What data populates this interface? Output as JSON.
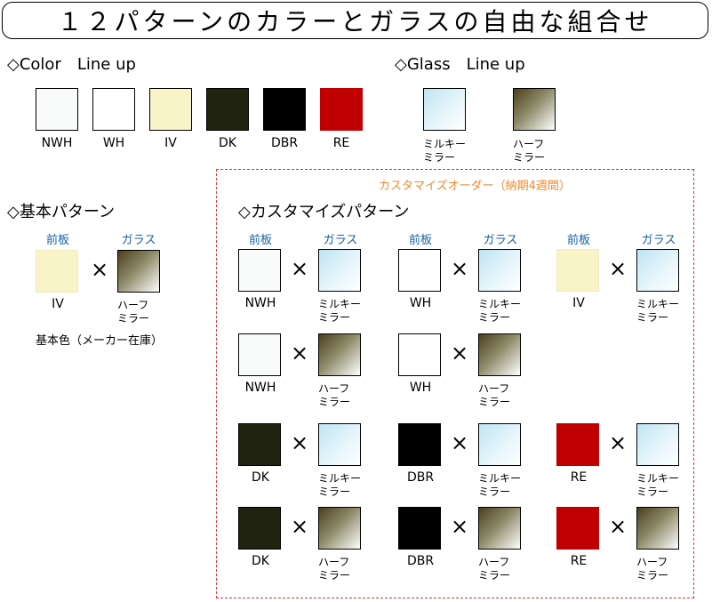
{
  "title": "１２パターンのカラーとガラスの自由な組合せ",
  "color_lineup": {
    "heading": "◇Color　Line up",
    "items": [
      {
        "code": "NWH",
        "color": "#f9fbfb"
      },
      {
        "code": "WH",
        "color": "#ffffff"
      },
      {
        "code": "IV",
        "color": "#f8f4c8"
      },
      {
        "code": "DK",
        "color": "#212311"
      },
      {
        "code": "DBR",
        "color": "#000000"
      },
      {
        "code": "RE",
        "color": "#c00000"
      }
    ]
  },
  "glass_lineup": {
    "heading": "◇Glass　Line up",
    "items": [
      {
        "line1": "ミルキー",
        "line2": "ミラー"
      },
      {
        "line1": "ハーフ",
        "line2": "ミラー"
      }
    ]
  },
  "basic": {
    "heading": "◇基本パターン",
    "front_label": "前板",
    "glass_label": "ガラス",
    "color": "IV",
    "glass_line1": "ハーフ",
    "glass_line2": "ミラー",
    "note": "基本色（メーカー在庫）"
  },
  "custom": {
    "order_note": "カスタマイズオーダー（納期4週間）",
    "heading": "◇カスタマイズパターン",
    "front_label": "前板",
    "glass_label": "ガラス",
    "times": "×",
    "rows": [
      [
        {
          "color": "NWH",
          "glass_line1": "ミルキー",
          "glass_line2": "ミラー"
        },
        {
          "color": "WH",
          "glass_line1": "ミルキー",
          "glass_line2": "ミラー"
        },
        {
          "color": "IV",
          "glass_line1": "ミルキー",
          "glass_line2": "ミラー"
        }
      ],
      [
        {
          "color": "NWH",
          "glass_line1": "ハーフ",
          "glass_line2": "ミラー"
        },
        {
          "color": "WH",
          "glass_line1": "ハーフ",
          "glass_line2": "ミラー"
        }
      ],
      [
        {
          "color": "DK",
          "glass_line1": "ミルキー",
          "glass_line2": "ミラー"
        },
        {
          "color": "DBR",
          "glass_line1": "ミルキー",
          "glass_line2": "ミラー"
        },
        {
          "color": "RE",
          "glass_line1": "ミルキー",
          "glass_line2": "ミラー"
        }
      ],
      [
        {
          "color": "DK",
          "glass_line1": "ハーフ",
          "glass_line2": "ミラー"
        },
        {
          "color": "DBR",
          "glass_line1": "ハーフ",
          "glass_line2": "ミラー"
        },
        {
          "color": "RE",
          "glass_line1": "ハーフ",
          "glass_line2": "ミラー"
        }
      ]
    ]
  }
}
